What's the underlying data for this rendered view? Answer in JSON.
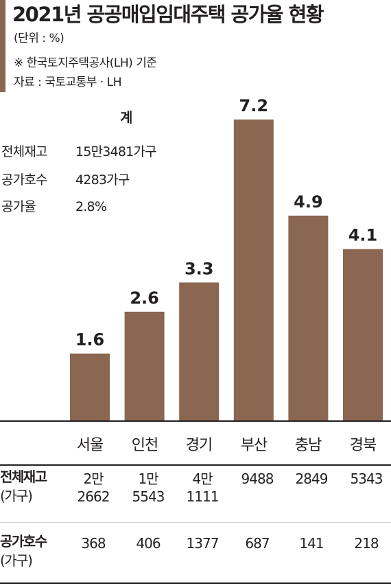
{
  "title": "2021년 공공매입임대주택 공가율 현황",
  "unit": "(단위 : %)",
  "note": "※ 한국토지주택공사(LH) 기준",
  "source": "자료 : 국토교통부 · LH",
  "summary": {
    "heading": "계",
    "rows": [
      {
        "label": "전체재고",
        "value": "15만3481가구"
      },
      {
        "label": "공가호수",
        "value": "4283가구"
      },
      {
        "label": "공가율",
        "value": "2.8%"
      }
    ]
  },
  "chart_data": {
    "type": "bar",
    "categories": [
      "서울",
      "인천",
      "경기",
      "부산",
      "충남",
      "경북"
    ],
    "values": [
      1.6,
      2.6,
      3.3,
      7.2,
      4.9,
      4.1
    ],
    "value_labels": [
      "1.6",
      "2.6",
      "3.3",
      "7.2",
      "4.9",
      "4.1"
    ],
    "ylim": [
      0,
      7.2
    ],
    "bar_color": "#8b6650",
    "grid": false
  },
  "table": {
    "rows": [
      {
        "label_main": "전체재고",
        "label_sub": "(가구)",
        "cells": [
          "2만\n2662",
          "1만\n5543",
          "4만\n1111",
          "9488",
          "2849",
          "5343"
        ]
      },
      {
        "label_main": "공가호수",
        "label_sub": "(가구)",
        "cells": [
          "368",
          "406",
          "1377",
          "687",
          "141",
          "218"
        ]
      }
    ]
  }
}
